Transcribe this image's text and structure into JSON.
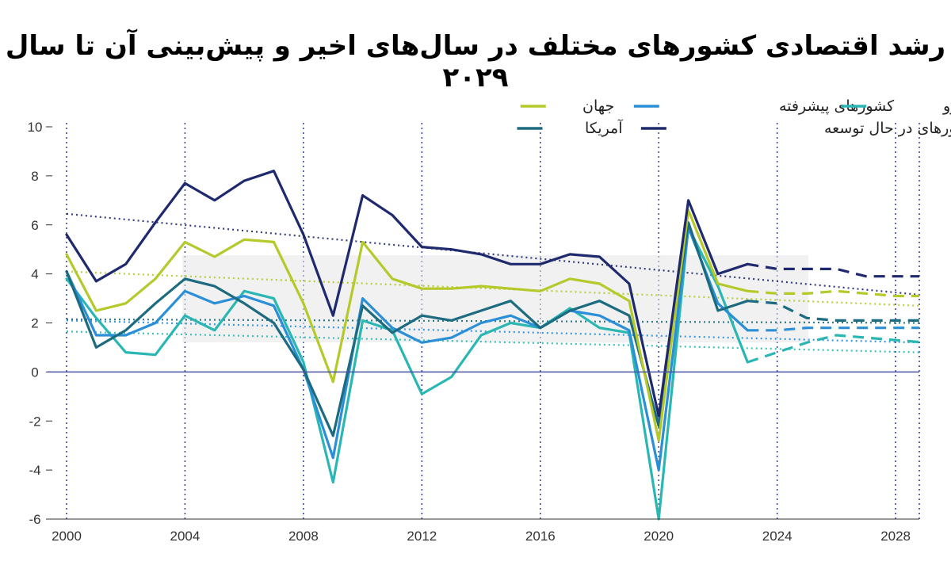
{
  "chart_data": {
    "type": "line",
    "title": "رشد اقتصادی کشورهای مختلف در سال‌های اخیر و پیش‌بینی آن تا سال ۲۰۲۹",
    "xlim": [
      2000,
      2028.8
    ],
    "ylim": [
      -6,
      10
    ],
    "x_ticks": [
      "2000",
      "2004",
      "2008",
      "2012",
      "2016",
      "2020",
      "2024",
      "2028"
    ],
    "y_ticks": [
      "10",
      "8",
      "6",
      "4",
      "2",
      "0",
      "-2",
      "-4",
      "-6"
    ],
    "grid": "vertical-dotted",
    "legend_position": "top-right",
    "actual_years": [
      2000,
      2001,
      2002,
      2003,
      2004,
      2005,
      2006,
      2007,
      2008,
      2009,
      2010,
      2011,
      2012,
      2013,
      2014,
      2015,
      2016,
      2017,
      2018,
      2019,
      2020,
      2021,
      2022,
      2023
    ],
    "forecast_years": [
      2023,
      2024,
      2025,
      2026,
      2027,
      2028,
      2029
    ],
    "series": [
      {
        "name": "جهان",
        "color": "#b5c92a",
        "values": [
          4.8,
          2.5,
          2.8,
          3.8,
          5.3,
          4.7,
          5.4,
          5.3,
          2.8,
          -0.4,
          5.3,
          3.8,
          3.4,
          3.4,
          3.5,
          3.4,
          3.3,
          3.8,
          3.6,
          2.9,
          -2.8,
          6.6,
          3.6,
          3.3
        ],
        "forecast": [
          3.3,
          3.2,
          3.2,
          3.3,
          3.2,
          3.1,
          3.1
        ],
        "trend": [
          4.1,
          2.7
        ]
      },
      {
        "name": "کشورهای پیشرفته",
        "color": "#2a8fd6",
        "values": [
          4.1,
          1.5,
          1.5,
          2.0,
          3.3,
          2.8,
          3.1,
          2.7,
          0.1,
          -3.5,
          3.0,
          1.8,
          1.2,
          1.4,
          2.0,
          2.3,
          1.8,
          2.5,
          2.3,
          1.7,
          -4.0,
          5.9,
          2.8,
          1.7
        ],
        "forecast": [
          1.7,
          1.7,
          1.8,
          1.8,
          1.8,
          1.8,
          1.8
        ],
        "trend": [
          2.1,
          1.2
        ]
      },
      {
        "name": "منطقه یورو",
        "color": "#2ab7b4",
        "values": [
          3.8,
          2.2,
          0.8,
          0.7,
          2.3,
          1.7,
          3.3,
          3.0,
          0.4,
          -4.5,
          2.1,
          1.7,
          -0.9,
          -0.2,
          1.5,
          2.0,
          1.8,
          2.6,
          1.8,
          1.6,
          -6.0,
          5.9,
          3.5,
          0.4
        ],
        "forecast": [
          0.4,
          0.8,
          1.2,
          1.5,
          1.4,
          1.3,
          1.2
        ],
        "trend": [
          1.65,
          0.8
        ]
      },
      {
        "name": "آمریکا",
        "color": "#1d6b80",
        "values": [
          4.1,
          1.0,
          1.7,
          2.8,
          3.8,
          3.5,
          2.8,
          2.0,
          0.1,
          -2.6,
          2.7,
          1.6,
          2.3,
          2.1,
          2.5,
          2.9,
          1.8,
          2.5,
          2.9,
          2.3,
          -2.2,
          6.1,
          2.5,
          2.9
        ],
        "forecast": [
          2.9,
          2.8,
          2.2,
          2.1,
          2.1,
          2.1,
          2.1
        ],
        "trend": [
          2.15,
          2.0
        ]
      },
      {
        "name": "کشورهای در حال توسعه",
        "color": "#1f2a6e",
        "values": [
          5.6,
          3.7,
          4.4,
          6.1,
          7.7,
          7.0,
          7.8,
          8.2,
          5.6,
          2.3,
          7.2,
          6.4,
          5.1,
          5.0,
          4.8,
          4.4,
          4.4,
          4.8,
          4.7,
          3.6,
          -1.8,
          7.0,
          4.0,
          4.4
        ],
        "forecast": [
          4.4,
          4.2,
          4.2,
          4.2,
          3.9,
          3.9,
          3.9
        ],
        "trend": [
          6.45,
          3.15
        ]
      }
    ]
  }
}
